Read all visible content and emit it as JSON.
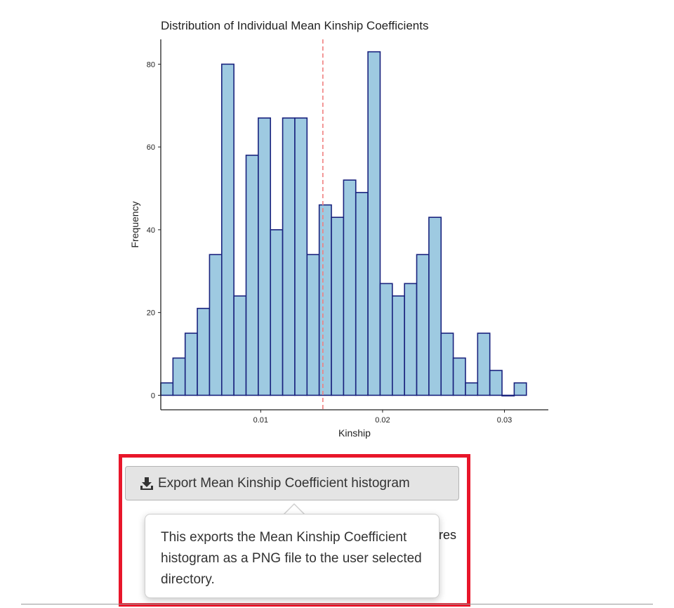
{
  "chart_data": {
    "type": "bar",
    "title": "Distribution of Individual Mean Kinship Coefficients",
    "xlabel": "Kinship",
    "ylabel": "Frequency",
    "bin_width": 0.001,
    "bin_centers": [
      0.0023,
      0.0033,
      0.0043,
      0.0053,
      0.0063,
      0.0073,
      0.0083,
      0.0093,
      0.0103,
      0.0113,
      0.0123,
      0.0133,
      0.0143,
      0.0153,
      0.0163,
      0.0173,
      0.0183,
      0.0193,
      0.0203,
      0.0213,
      0.0223,
      0.0233,
      0.0243,
      0.0253,
      0.0263,
      0.0273,
      0.0283,
      0.0293,
      0.0303,
      0.0313
    ],
    "values": [
      3,
      9,
      15,
      21,
      34,
      80,
      24,
      58,
      67,
      40,
      67,
      67,
      34,
      46,
      43,
      52,
      49,
      83,
      27,
      24,
      27,
      34,
      43,
      15,
      9,
      3,
      15,
      6,
      0,
      3
    ],
    "xlim": [
      0.0018,
      0.0336
    ],
    "ylim": [
      -3.5,
      86
    ],
    "x_ticks": [
      0.01,
      0.02,
      0.03
    ],
    "x_tick_labels": [
      "0.01",
      "0.02",
      "0.03"
    ],
    "y_ticks": [
      0,
      20,
      40,
      60,
      80
    ],
    "y_tick_labels": [
      "0",
      "20",
      "40",
      "60",
      "80"
    ],
    "mean_line_x": 0.0151,
    "bar_fill": "#9ecae1",
    "bar_stroke": "#1a237e",
    "mean_line_color": "#f08080"
  },
  "export_button": {
    "label": "Export Mean Kinship Coefficient histogram",
    "icon": "download-icon"
  },
  "behind_text": "scores",
  "tooltip": {
    "text": "This exports the Mean Kinship Coefficient histogram as a PNG file to the user selected directory."
  },
  "colors": {
    "highlight_border": "#e8162a",
    "button_background": "#e4e4e4"
  }
}
